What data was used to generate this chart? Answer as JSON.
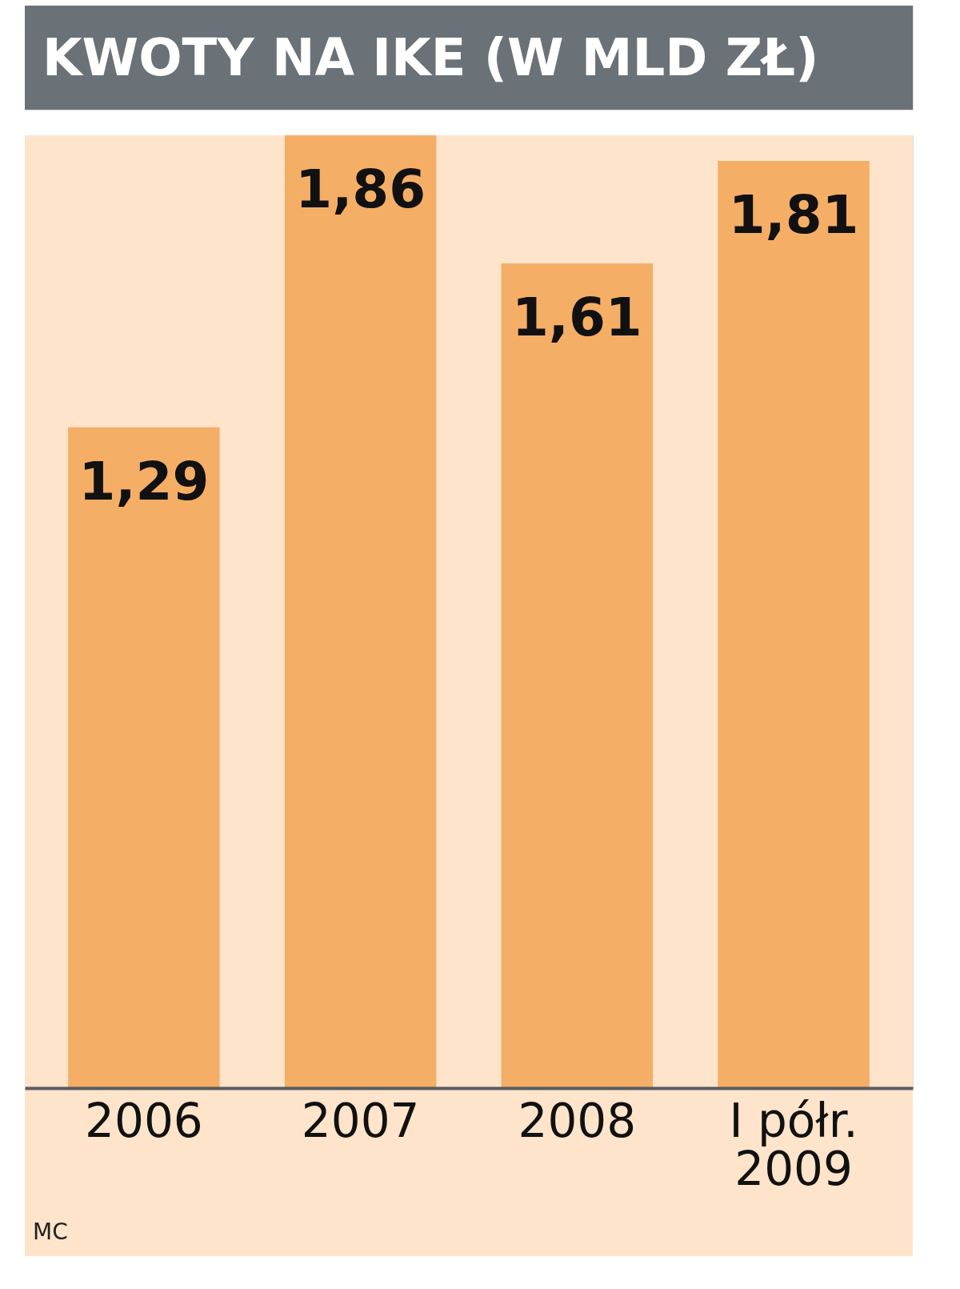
{
  "chart_data": {
    "type": "bar",
    "title": "KWOTY NA IKE (W MLD ZŁ)",
    "categories": [
      "2006",
      "2007",
      "2008",
      "I półr.\n2009"
    ],
    "values": [
      1.29,
      1.86,
      1.61,
      1.81
    ],
    "value_labels": [
      "1,29",
      "1,86",
      "1,61",
      "1,81"
    ],
    "color": "#f5ae66",
    "tick_labels": "x",
    "annotations": [
      "MC"
    ]
  }
}
